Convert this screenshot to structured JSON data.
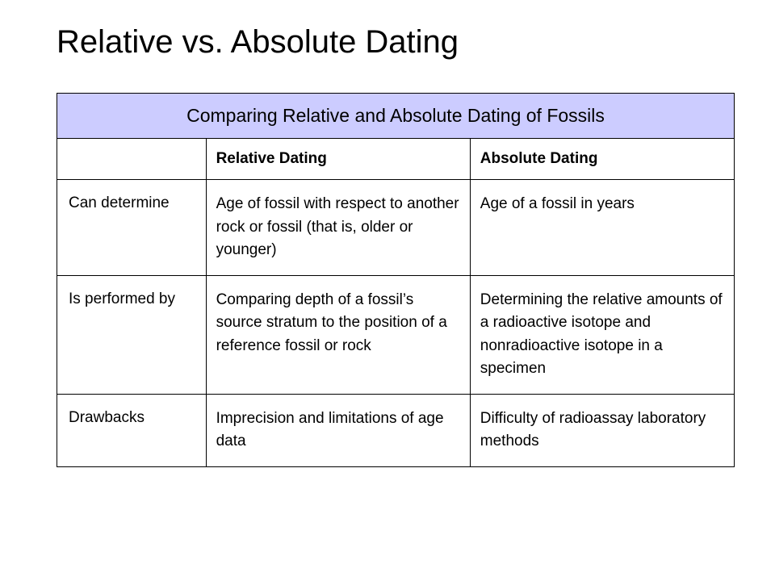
{
  "slide": {
    "title": "Relative vs. Absolute Dating"
  },
  "table": {
    "banner": "Comparing Relative and Absolute Dating of Fossils",
    "columns": {
      "blank": "",
      "col1": "Relative Dating",
      "col2": "Absolute Dating"
    },
    "rows": [
      {
        "label": "Can determine",
        "relative": "Age of fossil with respect to another rock or fossil (that is, older or younger)",
        "absolute": "Age of a fossil in years"
      },
      {
        "label": "Is performed by",
        "relative": "Comparing depth of a fossil’s source stratum to the position of a reference fossil or rock",
        "absolute": "Determining the relative amounts of a radioactive isotope and nonradioactive isotope in a specimen"
      },
      {
        "label": "Drawbacks",
        "relative": "Imprecision and limitations of age data",
        "absolute": "Difficulty of radioassay laboratory methods"
      }
    ]
  },
  "style": {
    "banner_bg": "#ccccff",
    "border_color": "#000000",
    "title_fontsize": 40,
    "banner_fontsize": 23,
    "body_fontsize": 19
  }
}
